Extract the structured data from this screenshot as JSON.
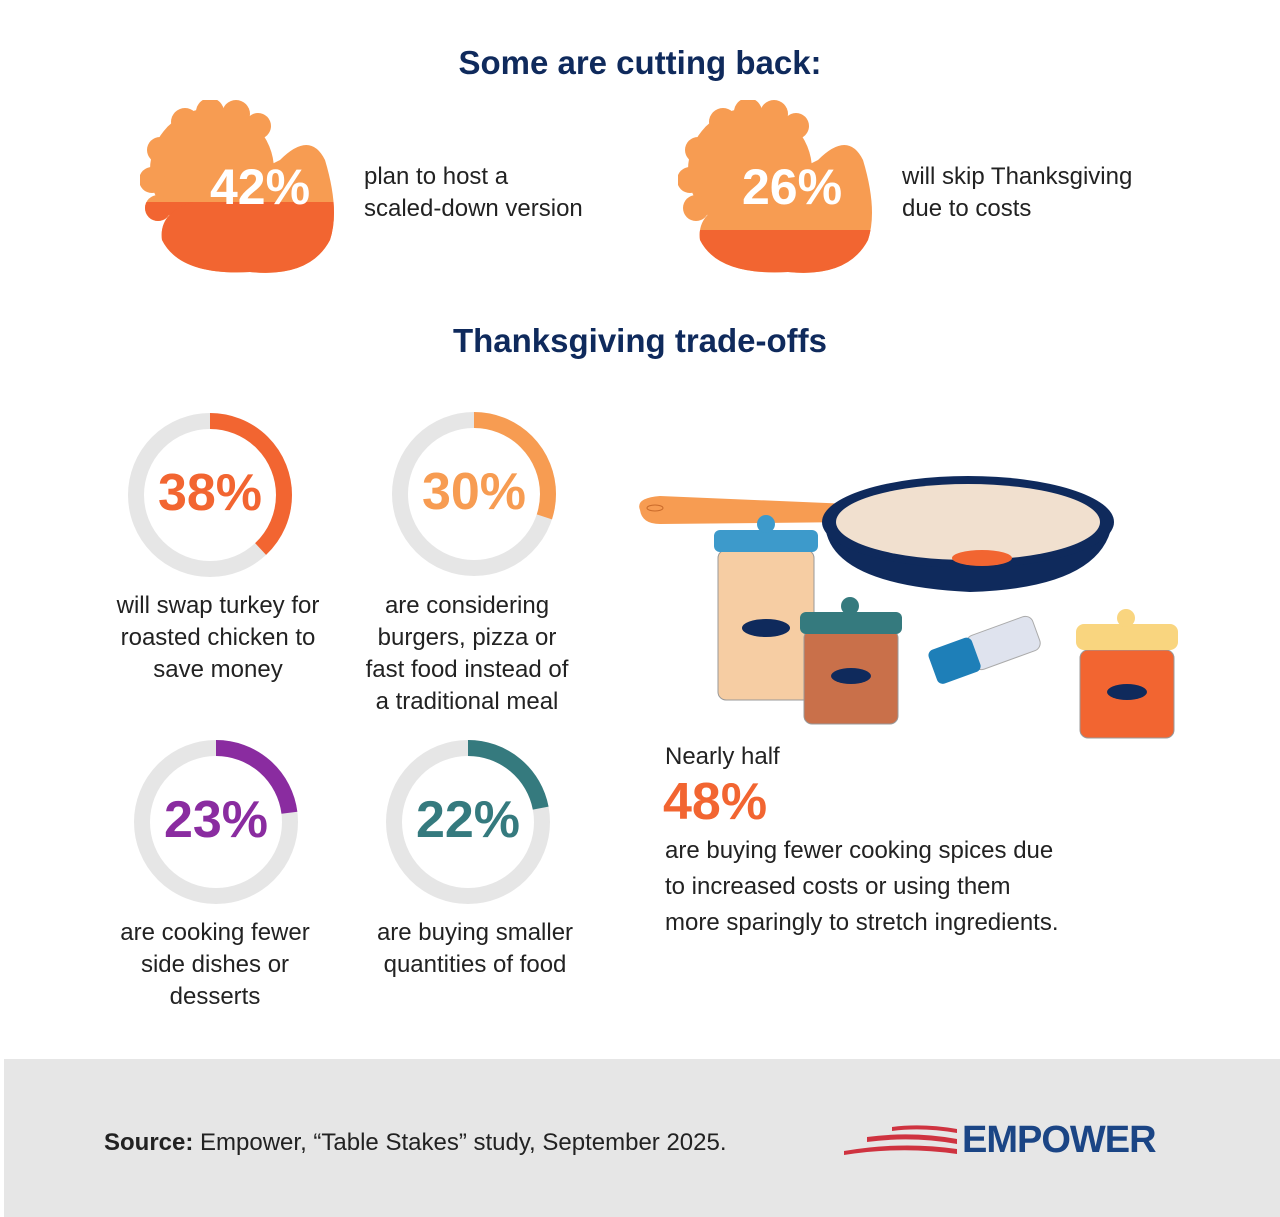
{
  "colors": {
    "navy": "#0f2a5c",
    "orange_dark": "#f26531",
    "orange_light": "#f79c52",
    "purple": "#8a2ca0",
    "teal": "#357a7e",
    "track": "#e6e6e6",
    "logo_red": "#cf3340",
    "logo_blue": "#1b4585"
  },
  "cutting_back": {
    "title": "Some are cutting back:",
    "items": [
      {
        "value": "42%",
        "fraction": 0.42,
        "text": [
          "plan to host a",
          "scaled-down version"
        ]
      },
      {
        "value": "26%",
        "fraction": 0.26,
        "text": [
          "will skip Thanksgiving",
          "due to costs"
        ]
      }
    ]
  },
  "tradeoffs": {
    "title": "Thanksgiving trade-offs",
    "gauges": [
      {
        "value": "38%",
        "percent": 38,
        "color": "#f26531",
        "text": [
          "will swap turkey for",
          "roasted chicken to",
          "save money"
        ]
      },
      {
        "value": "30%",
        "percent": 30,
        "color": "#f79c52",
        "text": [
          "are considering",
          "burgers, pizza or",
          "fast food instead of",
          "a traditional meal"
        ]
      },
      {
        "value": "23%",
        "percent": 23,
        "color": "#8a2ca0",
        "text": [
          "are cooking fewer",
          "side dishes or",
          "desserts"
        ]
      },
      {
        "value": "22%",
        "percent": 22,
        "color": "#357a7e",
        "text": [
          "are buying smaller",
          "quantities of food"
        ]
      }
    ],
    "spices": {
      "lead": "Nearly half",
      "value": "48%",
      "text": [
        "are buying fewer cooking spices due",
        "to increased costs or using them",
        "more sparingly to stretch ingredients."
      ]
    }
  },
  "footer": {
    "source_label": "Source:",
    "source_text": " Empower, “Table Stakes” study, September 2025.",
    "logo": "EMPOWER"
  }
}
